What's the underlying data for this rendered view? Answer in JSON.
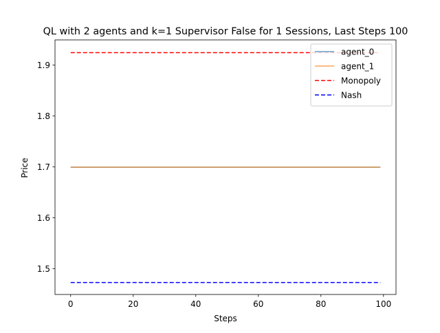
{
  "chart_data": {
    "type": "line",
    "title": "QL with 2 agents and k=1 Supervisor False for 1 Sessions, Last Steps 100",
    "xlabel": "Steps",
    "ylabel": "Price",
    "xlim": [
      -5,
      104
    ],
    "ylim": [
      1.4495,
      1.9495
    ],
    "xticks": [
      0,
      20,
      40,
      60,
      80,
      100
    ],
    "yticks": [
      1.5,
      1.6,
      1.7,
      1.8,
      1.9
    ],
    "xtick_labels": [
      "0",
      "20",
      "40",
      "60",
      "80",
      "100"
    ],
    "ytick_labels": [
      "1.5",
      "1.6",
      "1.7",
      "1.8",
      "1.9"
    ],
    "grid": false,
    "legend_position": "upper-right",
    "x": [
      0,
      99
    ],
    "series": [
      {
        "name": "agent_0",
        "values": [
          1.6995,
          1.6995
        ],
        "color": "#1f77b4",
        "style": "solid",
        "alpha": 0.7
      },
      {
        "name": "agent_1",
        "values": [
          1.6995,
          1.6995
        ],
        "color": "#ff7f0e",
        "style": "solid",
        "alpha": 0.7
      },
      {
        "name": "Monopoly",
        "values": [
          1.9245,
          1.9245
        ],
        "color": "#ff0000",
        "style": "dashed",
        "alpha": 1
      },
      {
        "name": "Nash",
        "values": [
          1.4729,
          1.4729
        ],
        "color": "#0000ff",
        "style": "dashed",
        "alpha": 1
      }
    ]
  }
}
